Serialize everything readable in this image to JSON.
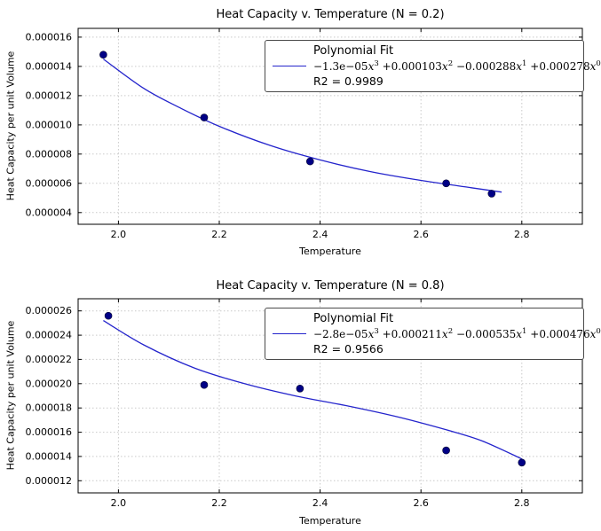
{
  "figure": {
    "background": "#ffffff"
  },
  "chart_data": [
    {
      "type": "scatter",
      "title": "Heat Capacity v. Temperature (N = 0.2)",
      "xlabel": "Temperature",
      "ylabel": "Heat Capacity per unit Volume",
      "xlim": [
        1.92,
        2.92
      ],
      "ylim": [
        3.2e-06,
        1.66e-05
      ],
      "grid": true,
      "legend_position": "upper right",
      "xticks": [
        {
          "v": 2.0,
          "label": "2.0"
        },
        {
          "v": 2.2,
          "label": "2.2"
        },
        {
          "v": 2.4,
          "label": "2.4"
        },
        {
          "v": 2.6,
          "label": "2.6"
        },
        {
          "v": 2.8,
          "label": "2.8"
        }
      ],
      "yticks": [
        {
          "v": 4e-06,
          "label": "0.000004"
        },
        {
          "v": 6e-06,
          "label": "0.000006"
        },
        {
          "v": 8e-06,
          "label": "0.000008"
        },
        {
          "v": 1e-05,
          "label": "0.000010"
        },
        {
          "v": 1.2e-05,
          "label": "0.000012"
        },
        {
          "v": 1.4e-05,
          "label": "0.000014"
        },
        {
          "v": 1.6e-05,
          "label": "0.000016"
        }
      ],
      "points": [
        [
          1.97,
          1.48e-05
        ],
        [
          2.17,
          1.05e-05
        ],
        [
          2.38,
          7.5e-06
        ],
        [
          2.65,
          6e-06
        ],
        [
          2.74,
          5.3e-06
        ]
      ],
      "fit_curve": [
        [
          1.97,
          1.45e-05
        ],
        [
          2.05,
          1.25e-05
        ],
        [
          2.12,
          1.12e-05
        ],
        [
          2.2,
          9.9e-06
        ],
        [
          2.3,
          8.6e-06
        ],
        [
          2.4,
          7.6e-06
        ],
        [
          2.5,
          6.8e-06
        ],
        [
          2.6,
          6.2e-06
        ],
        [
          2.7,
          5.7e-06
        ],
        [
          2.76,
          5.4e-06
        ]
      ],
      "legend": {
        "title": "Polynomial Fit",
        "terms": [
          {
            "coef": "−1.3e−05",
            "exp": "3"
          },
          {
            "coef": "+0.000103",
            "exp": "2"
          },
          {
            "coef": "−0.000288",
            "exp": "1"
          },
          {
            "coef": "+0.000278",
            "exp": "0"
          }
        ],
        "r2_label": "R2 = 0.9989"
      },
      "colors": {
        "line": "#2424cc",
        "marker": "#000085"
      }
    },
    {
      "type": "scatter",
      "title": "Heat Capacity v. Temperature (N = 0.8)",
      "xlabel": "Temperature",
      "ylabel": "Heat Capacity per unit Volume",
      "xlim": [
        1.92,
        2.92
      ],
      "ylim": [
        1.1e-05,
        2.7e-05
      ],
      "grid": true,
      "legend_position": "upper right",
      "xticks": [
        {
          "v": 2.0,
          "label": "2.0"
        },
        {
          "v": 2.2,
          "label": "2.2"
        },
        {
          "v": 2.4,
          "label": "2.4"
        },
        {
          "v": 2.6,
          "label": "2.6"
        },
        {
          "v": 2.8,
          "label": "2.8"
        }
      ],
      "yticks": [
        {
          "v": 1.2e-05,
          "label": "0.000012"
        },
        {
          "v": 1.4e-05,
          "label": "0.000014"
        },
        {
          "v": 1.6e-05,
          "label": "0.000016"
        },
        {
          "v": 1.8e-05,
          "label": "0.000018"
        },
        {
          "v": 2e-05,
          "label": "0.000020"
        },
        {
          "v": 2.2e-05,
          "label": "0.000022"
        },
        {
          "v": 2.4e-05,
          "label": "0.000024"
        },
        {
          "v": 2.6e-05,
          "label": "0.000026"
        }
      ],
      "points": [
        [
          1.98,
          2.56e-05
        ],
        [
          2.17,
          1.99e-05
        ],
        [
          2.36,
          1.96e-05
        ],
        [
          2.65,
          1.45e-05
        ],
        [
          2.8,
          1.35e-05
        ]
      ],
      "fit_curve": [
        [
          1.97,
          2.52e-05
        ],
        [
          2.05,
          2.32e-05
        ],
        [
          2.15,
          2.13e-05
        ],
        [
          2.25,
          2e-05
        ],
        [
          2.35,
          1.9e-05
        ],
        [
          2.45,
          1.82e-05
        ],
        [
          2.55,
          1.73e-05
        ],
        [
          2.65,
          1.62e-05
        ],
        [
          2.72,
          1.53e-05
        ],
        [
          2.8,
          1.38e-05
        ]
      ],
      "legend": {
        "title": "Polynomial Fit",
        "terms": [
          {
            "coef": "−2.8e−05",
            "exp": "3"
          },
          {
            "coef": "+0.000211",
            "exp": "2"
          },
          {
            "coef": "−0.000535",
            "exp": "1"
          },
          {
            "coef": "+0.000476",
            "exp": "0"
          }
        ],
        "r2_label": "R2 = 0.9566"
      },
      "colors": {
        "line": "#2424cc",
        "marker": "#000085"
      }
    }
  ]
}
